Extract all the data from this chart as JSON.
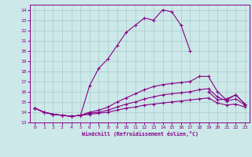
{
  "xlabel": "Windchill (Refroidissement éolien,°C)",
  "bg_color": "#cce8e8",
  "line_color": "#880088",
  "grid_color": "#aacccc",
  "ylim": [
    13,
    24.5
  ],
  "xlim": [
    -0.5,
    23.5
  ],
  "yticks": [
    13,
    14,
    15,
    16,
    17,
    18,
    19,
    20,
    21,
    22,
    23,
    24
  ],
  "xticks": [
    0,
    1,
    2,
    3,
    4,
    5,
    6,
    7,
    8,
    9,
    10,
    11,
    12,
    13,
    14,
    15,
    16,
    17,
    18,
    19,
    20,
    21,
    22,
    23
  ],
  "curve1": [
    14.4,
    14.0,
    13.8,
    13.7,
    13.6,
    13.7,
    16.6,
    18.3,
    19.2,
    20.5,
    21.8,
    22.5,
    23.2,
    23.0,
    24.0,
    23.8,
    22.5,
    20.0,
    null,
    16.0,
    15.2,
    15.3,
    15.7,
    14.8
  ],
  "curve2": [
    14.4,
    14.0,
    13.8,
    13.7,
    13.6,
    13.7,
    14.0,
    14.2,
    14.5,
    15.0,
    15.4,
    15.8,
    16.2,
    16.5,
    16.7,
    16.8,
    16.9,
    17.0,
    17.5,
    17.5,
    16.0,
    15.2,
    15.7,
    14.8
  ],
  "curve3": [
    14.4,
    14.0,
    13.8,
    13.7,
    13.6,
    13.7,
    13.9,
    14.0,
    14.2,
    14.5,
    14.8,
    15.0,
    15.3,
    15.5,
    15.7,
    15.8,
    15.9,
    16.0,
    16.2,
    16.3,
    15.5,
    15.1,
    15.3,
    14.7
  ],
  "curve4": [
    14.4,
    14.0,
    13.8,
    13.7,
    13.6,
    13.7,
    13.8,
    13.9,
    14.0,
    14.2,
    14.4,
    14.5,
    14.7,
    14.8,
    14.9,
    15.0,
    15.1,
    15.2,
    15.3,
    15.4,
    14.9,
    14.7,
    14.8,
    14.5
  ]
}
